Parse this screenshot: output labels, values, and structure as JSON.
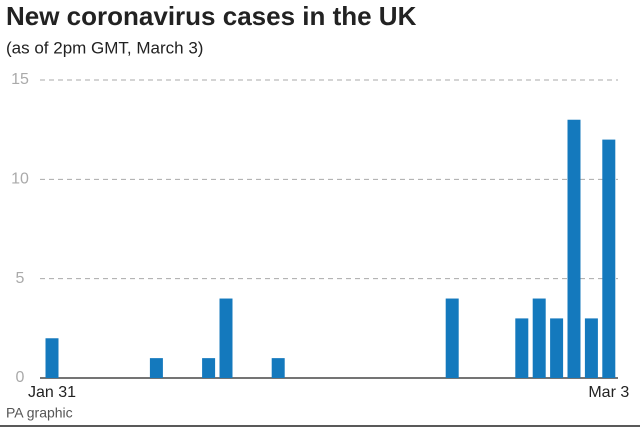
{
  "chart_data": {
    "type": "bar",
    "title": "New coronavirus cases in the UK",
    "subtitle": "(as of 2pm GMT, March 3)",
    "source": "PA graphic",
    "categories": [
      "Jan 31",
      null,
      null,
      null,
      null,
      null,
      null,
      null,
      null,
      null,
      null,
      null,
      null,
      null,
      null,
      null,
      null,
      null,
      null,
      null,
      null,
      null,
      null,
      null,
      null,
      null,
      null,
      null,
      null,
      null,
      null,
      null,
      "Mar 3"
    ],
    "values": [
      2,
      0,
      0,
      0,
      0,
      0,
      1,
      0,
      0,
      1,
      4,
      0,
      0,
      1,
      0,
      0,
      0,
      0,
      0,
      0,
      0,
      0,
      0,
      4,
      0,
      0,
      0,
      3,
      4,
      3,
      13,
      3,
      12
    ],
    "color": "#1479bd",
    "ylim": [
      0,
      15
    ],
    "yticks": [
      0,
      5,
      10,
      15
    ],
    "grid": true
  }
}
